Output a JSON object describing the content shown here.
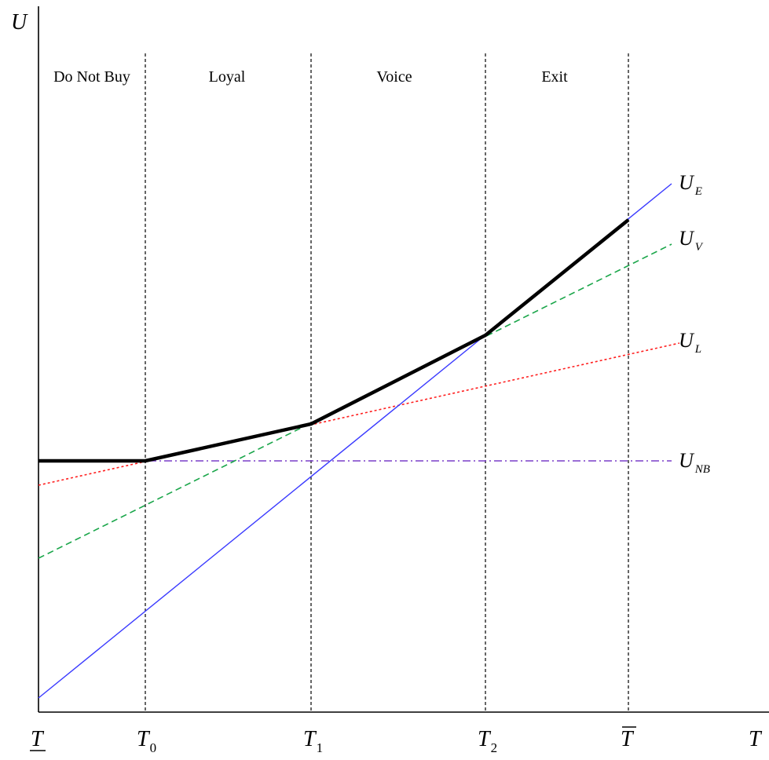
{
  "diagram": {
    "axis_labels": {
      "y": "U",
      "x": "T"
    },
    "regions": [
      "Do Not Buy",
      "Loyal",
      "Voice",
      "Exit"
    ],
    "ticks": [
      {
        "name": "T-lower",
        "main": "T",
        "sub": ""
      },
      {
        "name": "T0",
        "main": "T",
        "sub": "0"
      },
      {
        "name": "T1",
        "main": "T",
        "sub": "1"
      },
      {
        "name": "T2",
        "main": "T",
        "sub": "2"
      },
      {
        "name": "T-bar",
        "main": "T",
        "sub": ""
      }
    ],
    "curves": [
      {
        "key": "exit",
        "main": "U",
        "sub": "E",
        "color": "#3a3aff",
        "style": "solid"
      },
      {
        "key": "voice",
        "main": "U",
        "sub": "V",
        "color": "#1aa64a",
        "style": "dashed"
      },
      {
        "key": "loyal",
        "main": "U",
        "sub": "L",
        "color": "#ff2020",
        "style": "dotted"
      },
      {
        "key": "no-buy",
        "main": "U",
        "sub": "NB",
        "color": "#7a3fc8",
        "style": "dash-dot"
      }
    ],
    "envelope_color": "#000000"
  }
}
